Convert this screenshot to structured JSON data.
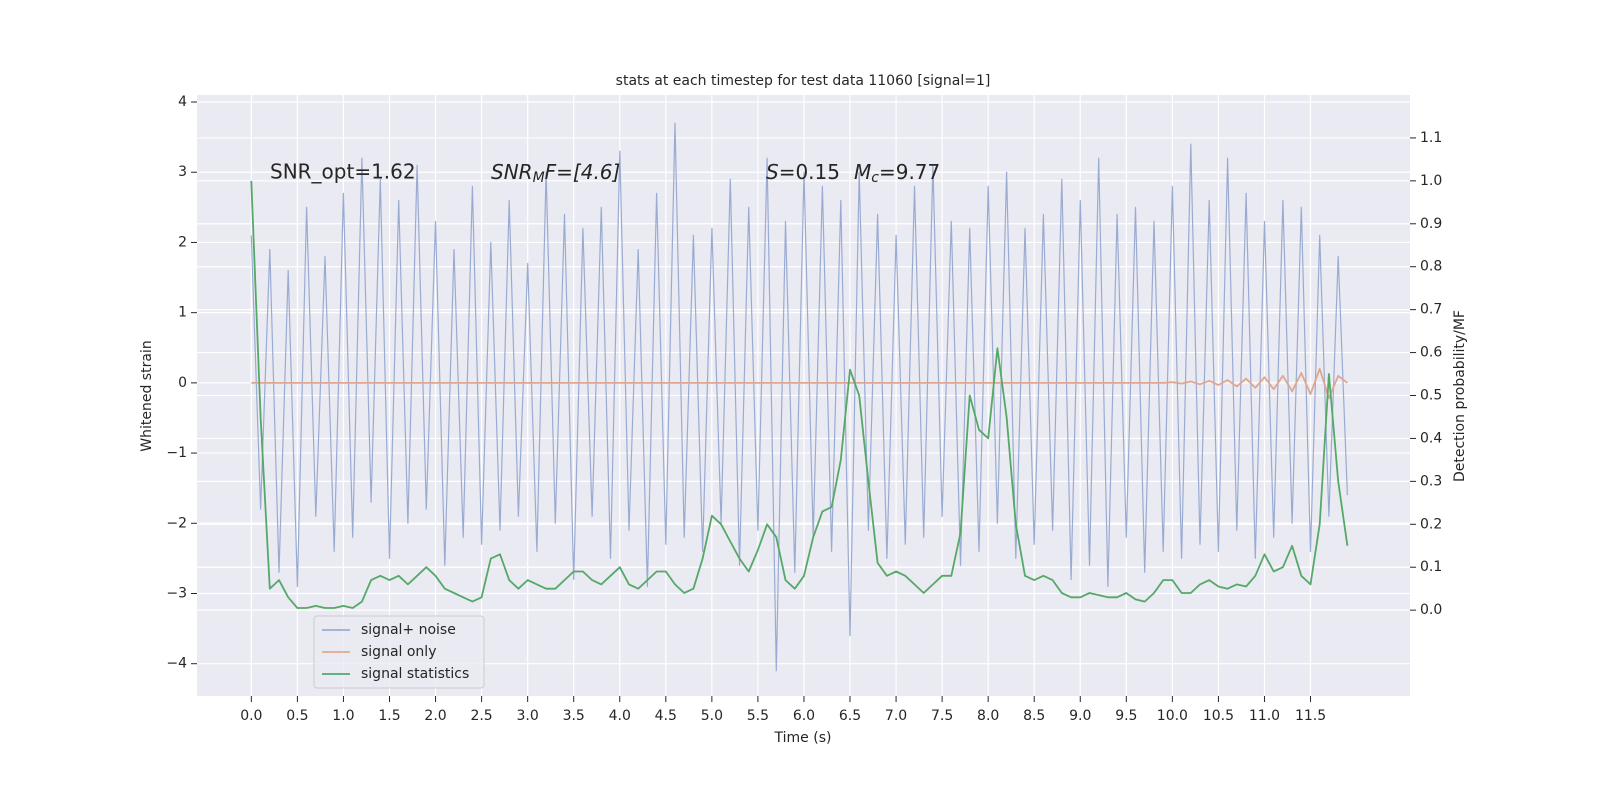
{
  "chart_data": {
    "type": "line",
    "title": "stats at each timestep for test data 11060 [signal=1]",
    "xlabel": "Time (s)",
    "ylabel": "Whitened strain",
    "y2label": "Detection probability/MF",
    "annotations": [
      [
        "SNR_opt=1.62"
      ],
      [
        "SNR",
        "M",
        "F=[4.6]"
      ],
      [
        "S",
        "=0.15",
        "M",
        "c",
        "=9.77"
      ]
    ],
    "x": [
      0,
      0.1,
      0.2,
      0.3,
      0.4,
      0.5,
      0.6,
      0.7,
      0.8,
      0.9,
      1,
      1.1,
      1.2,
      1.3,
      1.4,
      1.5,
      1.6,
      1.7,
      1.8,
      1.9,
      2,
      2.1,
      2.2,
      2.3,
      2.4,
      2.5,
      2.6,
      2.7,
      2.8,
      2.9,
      3,
      3.1,
      3.2,
      3.3,
      3.4,
      3.5,
      3.6,
      3.7,
      3.8,
      3.9,
      4,
      4.1,
      4.2,
      4.3,
      4.4,
      4.5,
      4.6,
      4.7,
      4.8,
      4.9,
      5,
      5.1,
      5.2,
      5.3,
      5.4,
      5.5,
      5.6,
      5.7,
      5.8,
      5.9,
      6,
      6.1,
      6.2,
      6.3,
      6.4,
      6.5,
      6.6,
      6.7,
      6.8,
      6.9,
      7,
      7.1,
      7.2,
      7.3,
      7.4,
      7.5,
      7.6,
      7.7,
      7.8,
      7.9,
      8,
      8.1,
      8.2,
      8.3,
      8.4,
      8.5,
      8.6,
      8.7,
      8.8,
      8.9,
      9,
      9.1,
      9.2,
      9.3,
      9.4,
      9.5,
      9.6,
      9.7,
      9.8,
      9.9,
      10,
      10.1,
      10.2,
      10.3,
      10.4,
      10.5,
      10.6,
      10.7,
      10.8,
      10.9,
      11,
      11.1,
      11.2,
      11.3,
      11.4,
      11.5,
      11.6,
      11.7,
      11.8,
      11.9
    ],
    "series": [
      {
        "name": "signal+ noise",
        "color": "#9aabd2",
        "axis": "y",
        "values": [
          2.1,
          -1.8,
          1.9,
          -2.7,
          1.6,
          -2.9,
          2.5,
          -1.9,
          1.8,
          -2.4,
          2.7,
          -2.2,
          3.2,
          -1.7,
          2.9,
          -2.5,
          2.6,
          -2.0,
          3.1,
          -1.8,
          2.3,
          -2.6,
          1.9,
          -2.2,
          2.8,
          -2.3,
          2.0,
          -2.1,
          2.6,
          -1.9,
          1.7,
          -2.4,
          3.0,
          -2.0,
          2.4,
          -2.8,
          2.2,
          -1.9,
          2.5,
          -2.5,
          3.3,
          -2.1,
          1.9,
          -2.9,
          2.7,
          -2.3,
          3.7,
          -2.2,
          2.1,
          -2.4,
          2.2,
          -2.0,
          2.9,
          -2.6,
          2.5,
          -2.1,
          3.2,
          -4.1,
          2.3,
          -2.7,
          3.0,
          -2.2,
          2.8,
          -2.4,
          2.6,
          -3.6,
          3.0,
          -2.1,
          2.4,
          -2.5,
          2.1,
          -2.3,
          2.8,
          -2.2,
          3.1,
          -1.9,
          2.3,
          -2.6,
          2.2,
          -2.4,
          2.8,
          -2.0,
          3.0,
          -2.5,
          2.2,
          -2.3,
          2.4,
          -2.1,
          2.9,
          -2.8,
          2.6,
          -2.6,
          3.2,
          -2.9,
          2.4,
          -2.2,
          2.5,
          -2.7,
          2.3,
          -2.4,
          2.8,
          -2.5,
          3.4,
          -2.3,
          2.6,
          -2.4,
          3.2,
          -2.1,
          2.7,
          -2.5,
          2.3,
          -2.2,
          2.6,
          -2.0,
          2.5,
          -2.4,
          2.1,
          -1.9,
          1.8,
          -1.6
        ]
      },
      {
        "name": "signal only",
        "color": "#e0a790",
        "axis": "y",
        "values": [
          0,
          0,
          0,
          0,
          0,
          0,
          0,
          0,
          0,
          0,
          0,
          0,
          0,
          0,
          0,
          0,
          0,
          0,
          0,
          0,
          0,
          0,
          0,
          0,
          0,
          0,
          0,
          0,
          0,
          0,
          0,
          0,
          0,
          0,
          0,
          0,
          0,
          0,
          0,
          0,
          0,
          0,
          0,
          0,
          0,
          0,
          0,
          0,
          0,
          0,
          0,
          0,
          0,
          0,
          0,
          0,
          0,
          0,
          0,
          0,
          0,
          0,
          0,
          0,
          0,
          0,
          0,
          0,
          0,
          0,
          0,
          0,
          0,
          0,
          0,
          0,
          0,
          0,
          0,
          0,
          0,
          0,
          0,
          0,
          0,
          0,
          0,
          0,
          0,
          0,
          0,
          0,
          0,
          0,
          0,
          0,
          0,
          0,
          0,
          0,
          0.01,
          -0.01,
          0.02,
          -0.02,
          0.03,
          -0.03,
          0.04,
          -0.05,
          0.06,
          -0.07,
          0.08,
          -0.09,
          0.1,
          -0.12,
          0.14,
          -0.16,
          0.2,
          -0.22,
          0.1,
          0
        ]
      },
      {
        "name": "signal statistics",
        "color": "#55a868",
        "axis": "y2",
        "values": [
          1.0,
          0.45,
          0.05,
          0.07,
          0.03,
          0.005,
          0.005,
          0.01,
          0.005,
          0.005,
          0.01,
          0.005,
          0.02,
          0.07,
          0.08,
          0.07,
          0.08,
          0.06,
          0.08,
          0.1,
          0.08,
          0.05,
          0.04,
          0.03,
          0.02,
          0.03,
          0.12,
          0.13,
          0.07,
          0.05,
          0.07,
          0.06,
          0.05,
          0.05,
          0.07,
          0.09,
          0.09,
          0.07,
          0.06,
          0.08,
          0.1,
          0.06,
          0.05,
          0.07,
          0.09,
          0.09,
          0.06,
          0.04,
          0.05,
          0.12,
          0.22,
          0.2,
          0.16,
          0.12,
          0.09,
          0.14,
          0.2,
          0.17,
          0.07,
          0.05,
          0.08,
          0.17,
          0.23,
          0.24,
          0.35,
          0.56,
          0.5,
          0.3,
          0.11,
          0.08,
          0.09,
          0.08,
          0.06,
          0.04,
          0.06,
          0.08,
          0.08,
          0.18,
          0.5,
          0.42,
          0.4,
          0.61,
          0.45,
          0.2,
          0.08,
          0.07,
          0.08,
          0.07,
          0.04,
          0.03,
          0.03,
          0.04,
          0.035,
          0.03,
          0.03,
          0.04,
          0.025,
          0.02,
          0.04,
          0.07,
          0.07,
          0.04,
          0.04,
          0.06,
          0.07,
          0.055,
          0.05,
          0.06,
          0.055,
          0.08,
          0.13,
          0.09,
          0.1,
          0.15,
          0.08,
          0.06,
          0.2,
          0.55,
          0.3,
          0.15
        ]
      }
    ],
    "xlim": [
      -0.59,
      12.58
    ],
    "ylim": [
      -4.46,
      4.1
    ],
    "y2lim": [
      -0.2,
      1.2
    ],
    "xticks": [
      {
        "value": 0,
        "label": "0.0"
      },
      0.5,
      {
        "value": 1,
        "label": "1.0"
      },
      1.5,
      {
        "value": 2,
        "label": "2.0"
      },
      2.5,
      {
        "value": 3,
        "label": "3.0"
      },
      3.5,
      {
        "value": 4,
        "label": "4.0"
      },
      4.5,
      {
        "value": 5,
        "label": "5.0"
      },
      5.5,
      {
        "value": 6,
        "label": "6.0"
      },
      6.5,
      {
        "value": 7,
        "label": "7.0"
      },
      7.5,
      {
        "value": 8,
        "label": "8.0"
      },
      8.5,
      {
        "value": 9,
        "label": "9.0"
      },
      9.5,
      {
        "value": 10,
        "label": "10.0"
      },
      10.5,
      {
        "value": 11,
        "label": "11.0"
      },
      11.5
    ],
    "yticks": [
      {
        "value": -4,
        "label": "−4"
      },
      {
        "value": -3,
        "label": "−3"
      },
      {
        "value": -2,
        "label": "−2"
      },
      {
        "value": -1,
        "label": "−1"
      },
      0,
      1,
      2,
      3,
      4
    ],
    "y2ticks": [
      {
        "value": 0,
        "label": "0.0"
      },
      0.1,
      0.2,
      0.3,
      0.4,
      0.5,
      0.6,
      0.7,
      0.8,
      0.9,
      {
        "value": 1,
        "label": "1.0"
      },
      1.1
    ],
    "grid": true,
    "legend": "lower left"
  }
}
